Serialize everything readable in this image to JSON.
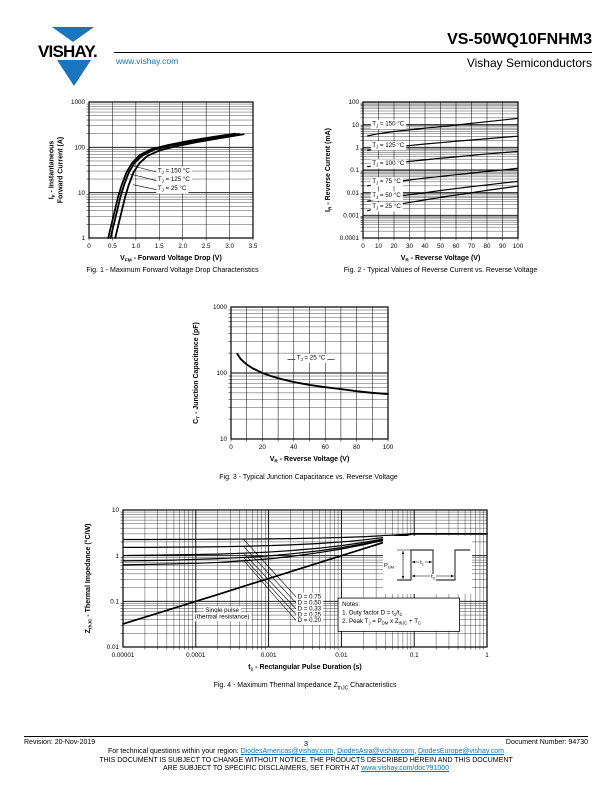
{
  "page": {
    "theme": {
      "brand_blue": "#1b75bc",
      "link_blue": "#0e72b8",
      "text_black": "#000000",
      "page_bg": "#ffffff"
    },
    "header": {
      "logo_text": "VISHAY.",
      "website": "www.vishay.com",
      "part_number": "VS-50WQ10FNHM3",
      "division": "Vishay Semiconductors"
    },
    "footer": {
      "revision": "Revision: 20-Nov-2019",
      "page_number": "3",
      "doc_number": "Document Number: 94730",
      "contact_prefix": "For technical questions within your region: ",
      "emails": [
        "DiodesAmericas@vishay.com",
        "DiodesAsia@vishay.com",
        "DiodesEurope@vishay.com"
      ],
      "separator": ", ",
      "disclaimer_line1": "THIS DOCUMENT IS SUBJECT TO CHANGE WITHOUT NOTICE. THE PRODUCTS DESCRIBED HEREIN AND THIS DOCUMENT",
      "disclaimer_line2": "ARE SUBJECT TO SPECIFIC DISCLAIMERS, SET FORTH AT ",
      "disclaimer_link": "www.vishay.com/doc?91000"
    }
  },
  "chart_data": [
    {
      "id": "fig1",
      "type": "line",
      "caption": "Fig. 1 - Maximum Forward Voltage Drop Characteristics",
      "xlabel": "V_{FM} - Forward Voltage Drop (V)",
      "ylabel_lines": [
        "I_{F} - Instantaneous",
        "Forward Current (A)"
      ],
      "xscale": "linear",
      "xlim": [
        0,
        3.5
      ],
      "xticks": [
        0,
        0.5,
        1,
        1.5,
        2,
        2.5,
        3,
        3.5
      ],
      "xtick_labels": [
        "0",
        "0.5",
        "1.0",
        "1.5",
        "2.0",
        "2.5",
        "3.0",
        "3.5"
      ],
      "yscale": "log",
      "ylim": [
        1,
        1000
      ],
      "yticks": [
        1,
        10,
        100,
        1000
      ],
      "ytick_labels": [
        "1",
        "10",
        "100",
        "1000"
      ],
      "grid": true,
      "stroke_width": 1.8,
      "series": [
        {
          "name": "T_{J} = 150 °C",
          "points": [
            [
              0.41,
              1
            ],
            [
              0.48,
              2
            ],
            [
              0.55,
              4
            ],
            [
              0.62,
              8
            ],
            [
              0.7,
              15
            ],
            [
              0.8,
              28
            ],
            [
              0.92,
              45
            ],
            [
              1.08,
              67
            ],
            [
              1.32,
              90
            ],
            [
              1.68,
              112
            ],
            [
              2.12,
              138
            ],
            [
              2.62,
              168
            ],
            [
              3.12,
              200
            ]
          ]
        },
        {
          "name": "T_{J} = 125 °C",
          "points": [
            [
              0.46,
              1
            ],
            [
              0.53,
              2
            ],
            [
              0.6,
              4
            ],
            [
              0.67,
              8
            ],
            [
              0.75,
              15
            ],
            [
              0.85,
              28
            ],
            [
              0.97,
              45
            ],
            [
              1.13,
              65
            ],
            [
              1.38,
              88
            ],
            [
              1.75,
              110
            ],
            [
              2.2,
              135
            ],
            [
              2.7,
              165
            ],
            [
              3.2,
              198
            ]
          ]
        },
        {
          "name": "T_{J} = 25 °C",
          "points": [
            [
              0.56,
              1
            ],
            [
              0.63,
              2
            ],
            [
              0.7,
              4
            ],
            [
              0.77,
              8
            ],
            [
              0.85,
              15
            ],
            [
              0.95,
              28
            ],
            [
              1.08,
              45
            ],
            [
              1.25,
              65
            ],
            [
              1.5,
              85
            ],
            [
              1.85,
              105
            ],
            [
              2.3,
              130
            ],
            [
              2.8,
              160
            ],
            [
              3.3,
              195
            ]
          ]
        }
      ],
      "labels": [
        {
          "text": "T_{J} = 150 °C",
          "x": 1.47,
          "y": 28,
          "anchor": "start",
          "box": true,
          "leader": [
            0.89,
            40
          ]
        },
        {
          "text": "T_{J} = 125 °C",
          "x": 1.47,
          "y": 18,
          "anchor": "start",
          "box": true,
          "leader": [
            0.87,
            26
          ]
        },
        {
          "text": "T_{J} = 25 °C",
          "x": 1.47,
          "y": 11.5,
          "anchor": "start",
          "box": true,
          "leader": [
            0.94,
            15
          ]
        }
      ]
    },
    {
      "id": "fig2",
      "type": "line",
      "caption": "Fig. 2 - Typical Values of Reverse Current vs. Reverse Voltage",
      "xlabel": "V_{R} - Reverse Voltage (V)",
      "ylabel_lines": [
        "I_{R} - Reverse Current (mA)"
      ],
      "xscale": "linear",
      "xlim": [
        0,
        100
      ],
      "xticks": [
        0,
        10,
        20,
        30,
        40,
        50,
        60,
        70,
        80,
        90,
        100
      ],
      "xtick_labels": [
        "0",
        "10",
        "20",
        "30",
        "40",
        "50",
        "60",
        "70",
        "80",
        "90",
        "100"
      ],
      "yscale": "log",
      "ylim": [
        0.0001,
        100
      ],
      "yticks": [
        0.0001,
        0.001,
        0.01,
        0.1,
        1,
        10,
        100
      ],
      "ytick_labels": [
        "0.0001",
        "0.001",
        "0.01",
        "0.1",
        "1",
        "10",
        "100"
      ],
      "grid": true,
      "stroke_width": 1.2,
      "series": [
        {
          "name": "T_{J} = 150 °C",
          "x": [
            3,
            10,
            20,
            30,
            40,
            50,
            60,
            70,
            80,
            90,
            100
          ],
          "y": [
            3.2,
            4.0,
            5.0,
            5.9,
            7.0,
            8.2,
            9.6,
            11.5,
            13.5,
            16,
            19
          ]
        },
        {
          "name": "T_{J} = 125 °C",
          "x": [
            3,
            10,
            20,
            30,
            40,
            50,
            60,
            70,
            80,
            90,
            100
          ],
          "y": [
            0.75,
            0.9,
            1.05,
            1.2,
            1.4,
            1.6,
            1.85,
            2.1,
            2.4,
            2.75,
            3.1
          ]
        },
        {
          "name": "T_{J} = 100 °C",
          "x": [
            3,
            10,
            20,
            30,
            40,
            50,
            60,
            70,
            80,
            90,
            100
          ],
          "y": [
            0.14,
            0.17,
            0.2,
            0.24,
            0.28,
            0.33,
            0.38,
            0.44,
            0.51,
            0.58,
            0.66
          ]
        },
        {
          "name": "T_{J} = 75 °C",
          "x": [
            3,
            10,
            20,
            30,
            40,
            50,
            60,
            70,
            80,
            90,
            100
          ],
          "y": [
            0.02,
            0.024,
            0.03,
            0.036,
            0.044,
            0.052,
            0.062,
            0.073,
            0.086,
            0.1,
            0.12
          ]
        },
        {
          "name": "T_{J} = 50 °C",
          "x": [
            3,
            10,
            20,
            30,
            40,
            50,
            60,
            70,
            80,
            90,
            100
          ],
          "y": [
            0.0042,
            0.0052,
            0.0066,
            0.0082,
            0.01,
            0.0125,
            0.0152,
            0.0185,
            0.022,
            0.0265,
            0.0315
          ]
        },
        {
          "name": "T_{J} = 25 °C",
          "x": [
            3,
            10,
            20,
            30,
            40,
            50,
            60,
            70,
            80,
            90,
            100
          ],
          "y": [
            0.0016,
            0.0021,
            0.0028,
            0.0037,
            0.0048,
            0.0062,
            0.0079,
            0.01,
            0.0126,
            0.0157,
            0.0195
          ]
        }
      ],
      "labels": [
        {
          "text": "T_{J} = 150 °C",
          "x": 6,
          "y": 9,
          "anchor": "start",
          "box": true
        },
        {
          "text": "T_{J} = 125 °C",
          "x": 6,
          "y": 1.05,
          "anchor": "start",
          "box": true
        },
        {
          "text": "T_{J} = 100 °C",
          "x": 6,
          "y": 0.165,
          "anchor": "start",
          "box": true
        },
        {
          "text": "T_{J} = 75 °C",
          "x": 6,
          "y": 0.027,
          "anchor": "start",
          "box": true
        },
        {
          "text": "T_{J} = 50 °C",
          "x": 6,
          "y": 0.0063,
          "anchor": "start",
          "box": true
        },
        {
          "text": "T_{J} = 25 °C",
          "x": 6,
          "y": 0.0021,
          "anchor": "start",
          "box": true
        }
      ]
    },
    {
      "id": "fig3",
      "type": "line",
      "caption": "Fig. 3 - Typical Junction Capacitance vs. Reverse Voltage",
      "xlabel": "V_{R} - Reverse Voltage (V)",
      "ylabel_lines": [
        "C_{T} - Junction Capacitance (pF)"
      ],
      "xscale": "linear",
      "xlim": [
        0,
        100
      ],
      "xticks": [
        0,
        10,
        20,
        30,
        40,
        50,
        60,
        70,
        80,
        90,
        100
      ],
      "xtick_labels": [
        "0",
        "",
        "20",
        "",
        "40",
        "",
        "60",
        "",
        "80",
        "",
        "100"
      ],
      "yscale": "log",
      "ylim": [
        10,
        1000
      ],
      "yticks": [
        10,
        100,
        1000
      ],
      "ytick_labels": [
        "10",
        "100",
        "1000"
      ],
      "grid": true,
      "stroke_width": 1.9,
      "series": [
        {
          "name": "T_{J} = 25 °C",
          "points": [
            [
              4,
              195
            ],
            [
              6,
              165
            ],
            [
              8,
              148
            ],
            [
              10,
              135
            ],
            [
              14,
              117
            ],
            [
              20,
              100
            ],
            [
              26,
              89
            ],
            [
              32,
              81
            ],
            [
              40,
              73
            ],
            [
              50,
              66
            ],
            [
              60,
              61
            ],
            [
              70,
              57
            ],
            [
              80,
              53
            ],
            [
              90,
              50
            ],
            [
              100,
              48
            ]
          ]
        }
      ],
      "labels": [
        {
          "text": "T_{J} = 25 °C",
          "x": 51,
          "y": 160,
          "anchor": "middle",
          "box": true,
          "leader": [
            66,
            160
          ],
          "leader2": [
            36,
            160
          ]
        }
      ]
    },
    {
      "id": "fig4",
      "type": "line",
      "caption": "Fig. 4 - Maximum Thermal Impedance Z_{thJC} Characteristics",
      "xlabel": "t_{1} - Rectangular Pulse Duration (s)",
      "ylabel_lines": [
        "Z_{thJC} - Thermal Impedance (°C/W)"
      ],
      "xscale": "log",
      "xlim": [
        1e-05,
        1
      ],
      "xticks": [
        1e-05,
        0.0001,
        0.001,
        0.01,
        0.1,
        1
      ],
      "xtick_labels": [
        "0.00001",
        "0.0001",
        "0.001",
        "0.01",
        "0.1",
        "1"
      ],
      "yscale": "log",
      "ylim": [
        0.01,
        10
      ],
      "yticks": [
        0.01,
        0.1,
        1,
        10
      ],
      "ytick_labels": [
        "0.01",
        "0.1",
        "1",
        "10"
      ],
      "grid": true,
      "stroke_width": 1.2,
      "series": [
        {
          "name": "D = 0.75",
          "x": [
            1e-05,
            2e-05,
            5e-05,
            0.0001,
            0.0002,
            0.0005,
            0.001,
            0.002,
            0.005,
            0.01,
            0.02,
            0.05,
            0.09,
            0.2,
            0.5,
            1
          ],
          "y": [
            2.26,
            2.26,
            2.27,
            2.28,
            2.29,
            2.31,
            2.33,
            2.36,
            2.43,
            2.5,
            2.6,
            2.81,
            3.0,
            3.0,
            3.0,
            3.0
          ]
        },
        {
          "name": "D = 0.50",
          "x": [
            1e-05,
            2e-05,
            5e-05,
            0.0001,
            0.0002,
            0.0005,
            0.001,
            0.002,
            0.005,
            0.01,
            0.02,
            0.05,
            0.09,
            0.2,
            0.5,
            1
          ],
          "y": [
            1.52,
            1.52,
            1.54,
            1.55,
            1.57,
            1.61,
            1.66,
            1.72,
            1.85,
            2.0,
            2.21,
            2.62,
            3.0,
            3.0,
            3.0,
            3.0
          ]
        },
        {
          "name": "D = 0.33",
          "x": [
            1e-05,
            2e-05,
            5e-05,
            0.0001,
            0.0002,
            0.0005,
            0.001,
            0.002,
            0.005,
            0.01,
            0.02,
            0.05,
            0.09,
            0.2,
            0.5,
            1
          ],
          "y": [
            1.01,
            1.02,
            1.04,
            1.06,
            1.08,
            1.14,
            1.2,
            1.29,
            1.46,
            1.66,
            1.94,
            2.49,
            3.0,
            3.0,
            3.0,
            3.0
          ]
        },
        {
          "name": "D = 0.25",
          "x": [
            1e-05,
            2e-05,
            5e-05,
            0.0001,
            0.0002,
            0.0005,
            0.001,
            0.002,
            0.005,
            0.01,
            0.02,
            0.05,
            0.09,
            0.2,
            0.5,
            1
          ],
          "y": [
            0.77,
            0.78,
            0.8,
            0.83,
            0.86,
            0.92,
            0.99,
            1.09,
            1.28,
            1.5,
            1.81,
            2.43,
            3.0,
            3.0,
            3.0,
            3.0
          ]
        },
        {
          "name": "D = 0.20",
          "x": [
            1e-05,
            2e-05,
            5e-05,
            0.0001,
            0.0002,
            0.0005,
            0.001,
            0.002,
            0.005,
            0.01,
            0.02,
            0.05,
            0.09,
            0.2,
            0.5,
            1
          ],
          "y": [
            0.63,
            0.64,
            0.66,
            0.68,
            0.71,
            0.78,
            0.85,
            0.96,
            1.17,
            1.4,
            1.73,
            2.39,
            3.0,
            3.0,
            3.0,
            3.0
          ]
        },
        {
          "name": "Single pulse (thermal resistance)",
          "wide": true,
          "x": [
            1e-05,
            2e-05,
            5e-05,
            0.0001,
            0.0002,
            0.0005,
            0.001,
            0.002,
            0.005,
            0.01,
            0.02,
            0.05,
            0.09,
            0.2,
            0.5,
            1
          ],
          "y": [
            0.032,
            0.045,
            0.071,
            0.1,
            0.141,
            0.224,
            0.316,
            0.447,
            0.707,
            1.0,
            1.41,
            2.24,
            3.0,
            3.0,
            3.0,
            3.0
          ]
        }
      ],
      "labels": [
        {
          "text": "D = 0.75",
          "x": 0.0025,
          "y": 0.115,
          "anchor": "start",
          "box": true,
          "leader": [
            0.00045,
            2.31
          ]
        },
        {
          "text": "D = 0.50",
          "x": 0.0025,
          "y": 0.085,
          "anchor": "start",
          "box": true,
          "leader": [
            0.00045,
            1.62
          ]
        },
        {
          "text": "D = 0.33",
          "x": 0.0025,
          "y": 0.063,
          "anchor": "start",
          "box": true,
          "leader": [
            0.00045,
            1.15
          ]
        },
        {
          "text": "D = 0.25",
          "x": 0.0025,
          "y": 0.047,
          "anchor": "start",
          "box": true,
          "leader": [
            0.00045,
            0.93
          ]
        },
        {
          "text": "D = 0.20",
          "x": 0.0025,
          "y": 0.035,
          "anchor": "start",
          "box": true,
          "leader": [
            0.00045,
            0.8
          ]
        },
        {
          "text": "Single pulse",
          "x": 0.00023,
          "y": 0.058,
          "anchor": "middle",
          "box": true
        },
        {
          "text": "(thermal resistance)",
          "x": 0.00023,
          "y": 0.042,
          "anchor": "middle",
          "box": true
        }
      ],
      "notes": {
        "x1": 0.009,
        "x2": 0.42,
        "y1": 0.118,
        "y2": 0.022,
        "lines": [
          "Notes:",
          "1. Duty factor D = t_{1}/t_{2}",
          "2. Peak T_{J} = P_{DM} x Z_{thJC} + T_{C}"
        ]
      },
      "inset_labels": {
        "pdm": "P_{DM}",
        "t1": "t_{1}",
        "t2": "t_{2}"
      }
    }
  ]
}
